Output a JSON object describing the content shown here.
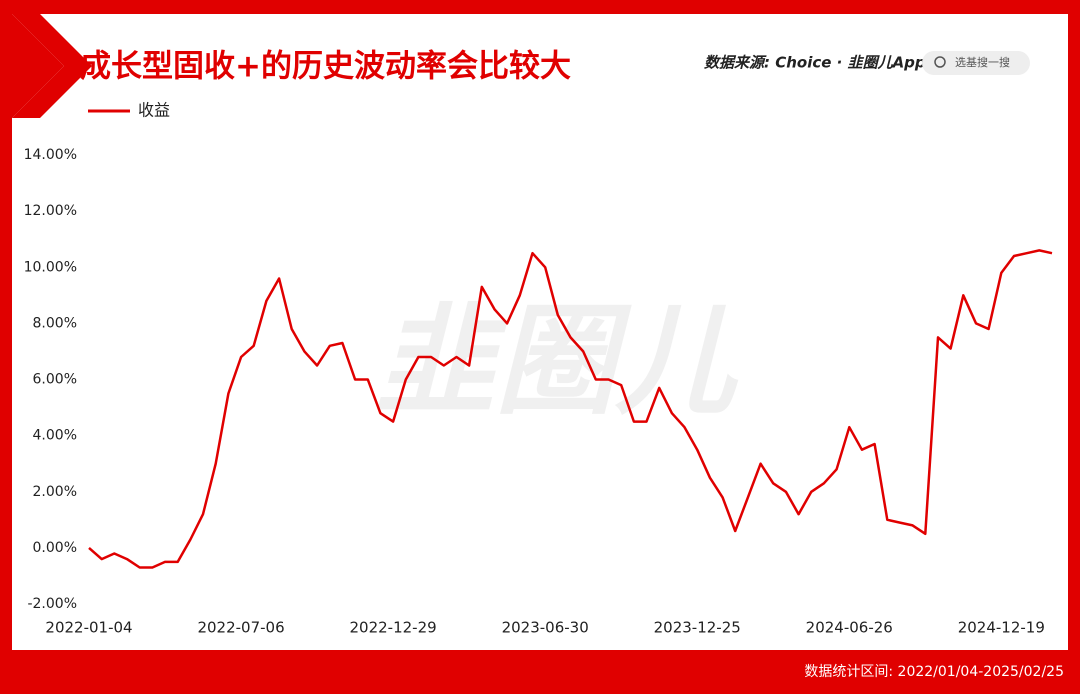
{
  "chart_data": {
    "type": "line",
    "title": "成长型固收+的历史波动率会比较大",
    "source": "数据来源: Choice · 韭圈儿App",
    "search_placeholder": "选基搜一搜",
    "watermark": "韭圈儿",
    "footer": "数据统计区间: 2022/01/04-2025/02/25",
    "categories": [
      "2022-01-04",
      null,
      null,
      null,
      null,
      null,
      null,
      null,
      null,
      null,
      null,
      null,
      "2022-07-06",
      null,
      null,
      null,
      null,
      null,
      null,
      null,
      null,
      null,
      null,
      null,
      "2022-12-29",
      null,
      null,
      null,
      null,
      null,
      null,
      null,
      null,
      null,
      null,
      null,
      "2023-06-30",
      null,
      null,
      null,
      null,
      null,
      null,
      null,
      null,
      null,
      null,
      null,
      "2023-12-25",
      null,
      null,
      null,
      null,
      null,
      null,
      null,
      null,
      null,
      null,
      null,
      "2024-06-26",
      null,
      null,
      null,
      null,
      null,
      null,
      null,
      null,
      null,
      null,
      null,
      "2024-12-19",
      null,
      null,
      null,
      null
    ],
    "series": [
      {
        "name": "收益",
        "color": "#e00000",
        "values": [
          0.0,
          -0.4,
          -0.2,
          -0.4,
          -0.7,
          -0.7,
          -0.5,
          -0.5,
          0.3,
          1.2,
          3.0,
          5.5,
          6.8,
          7.2,
          8.8,
          9.6,
          7.8,
          7.0,
          6.5,
          7.2,
          7.3,
          6.0,
          6.0,
          4.8,
          4.5,
          6.0,
          6.8,
          6.8,
          6.5,
          6.8,
          6.5,
          9.3,
          8.5,
          8.0,
          9.0,
          10.5,
          10.0,
          8.3,
          7.5,
          7.0,
          6.0,
          6.0,
          5.8,
          4.5,
          4.5,
          5.7,
          4.8,
          4.3,
          3.5,
          2.5,
          1.8,
          0.6,
          1.8,
          3.0,
          2.3,
          2.0,
          1.2,
          2.0,
          2.3,
          2.8,
          4.3,
          3.5,
          3.7,
          1.0,
          0.9,
          0.8,
          0.5,
          7.5,
          7.1,
          9.0,
          8.0,
          7.8,
          9.8,
          10.4,
          10.5,
          10.6,
          10.5
        ]
      }
    ],
    "ylim": [
      -2,
      14
    ],
    "yticks": [
      {
        "value": -2,
        "label": "-2.00%"
      },
      {
        "value": 0,
        "label": "0.00%"
      },
      {
        "value": 2,
        "label": "2.00%"
      },
      {
        "value": 4,
        "label": "4.00%"
      },
      {
        "value": 6,
        "label": "6.00%"
      },
      {
        "value": 8,
        "label": "8.00%"
      },
      {
        "value": 10,
        "label": "10.00%"
      },
      {
        "value": 12,
        "label": "12.00%"
      },
      {
        "value": 14,
        "label": "14.00%"
      }
    ],
    "grid": false
  }
}
